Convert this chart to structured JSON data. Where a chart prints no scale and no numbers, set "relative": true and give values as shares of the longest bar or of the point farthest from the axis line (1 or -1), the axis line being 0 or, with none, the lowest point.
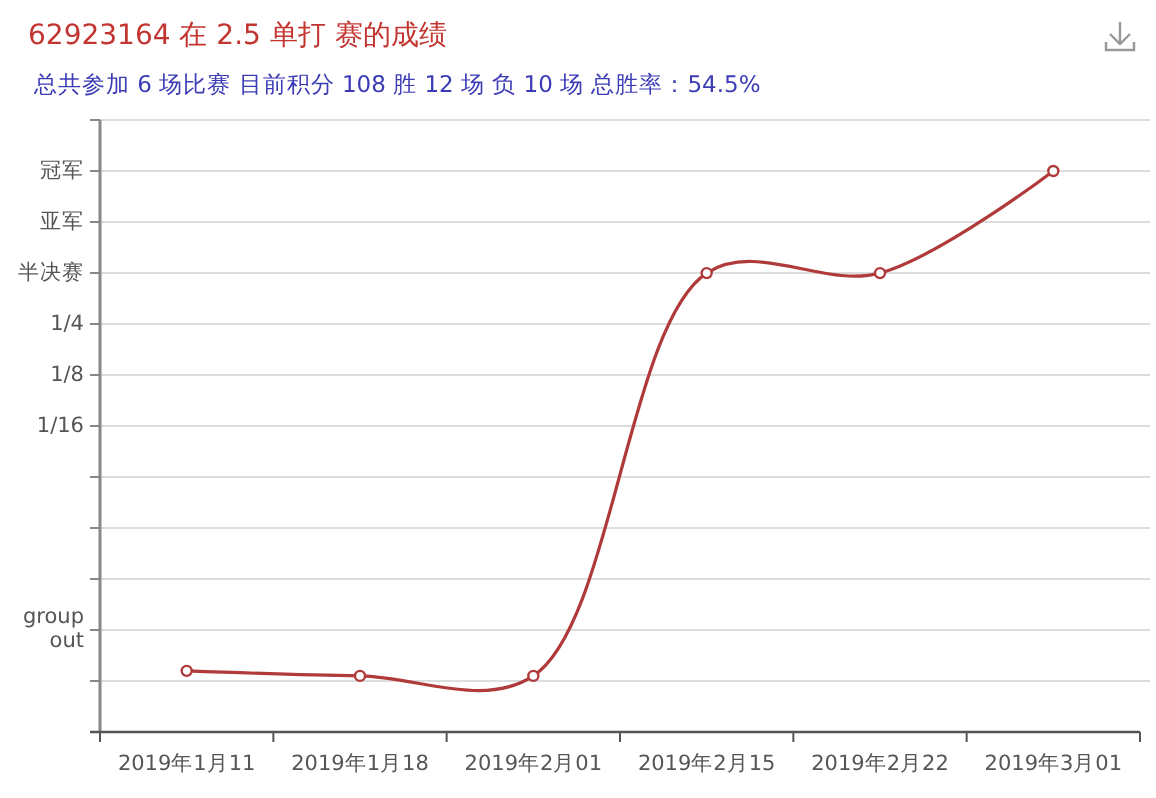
{
  "chart_data": {
    "type": "line",
    "title": "62923164 在 2.5 单打 赛的成绩",
    "subtitle": "总共参加 6 场比赛  目前积分 108 胜 12 场  负 10 场  总胜率：54.5%",
    "categories": [
      "2019年1月11",
      "2019年1月18",
      "2019年2月01",
      "2019年2月15",
      "2019年2月22",
      "2019年3月01"
    ],
    "relative": true,
    "series": [
      {
        "color": "#b03a3a",
        "values": [
          0.109,
          0.1,
          0.1,
          0.818,
          0.818,
          1
        ]
      }
    ],
    "annotations": [
      "group\nout",
      "1/16",
      "1/8",
      "1/4",
      "半决赛",
      "亚军",
      "冠军"
    ],
    "grid": "y",
    "marker": "circle",
    "line_style": "solid"
  }
}
